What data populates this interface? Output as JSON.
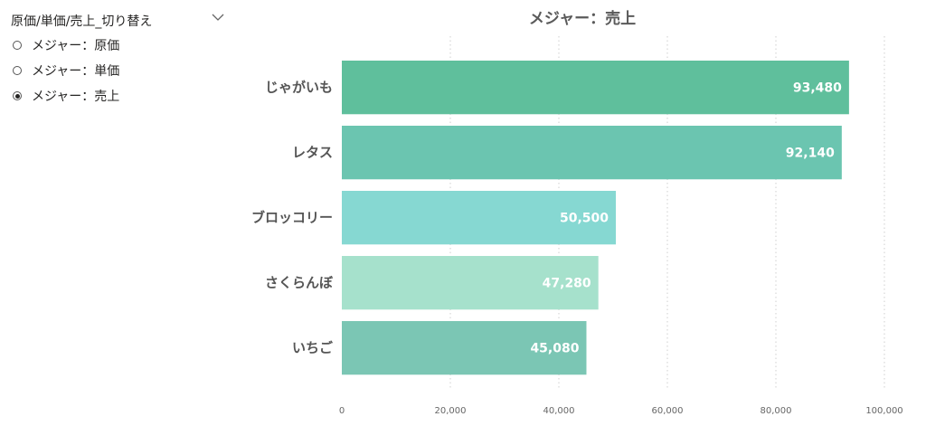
{
  "slicer": {
    "title": "原価/単価/売上_切り替え",
    "chevron_icon": "chevron-down-icon",
    "options": [
      {
        "label": "メジャー：原価",
        "selected": false
      },
      {
        "label": "メジャー：単価",
        "selected": false
      },
      {
        "label": "メジャー：売上",
        "selected": true
      }
    ]
  },
  "chart_data": {
    "type": "bar",
    "orientation": "horizontal",
    "title": "メジャー：売上",
    "categories": [
      "じゃがいも",
      "レタス",
      "ブロッコリー",
      "さくらんぼ",
      "いちご"
    ],
    "values": [
      93480,
      92140,
      50500,
      47280,
      45080
    ],
    "data_labels": [
      "93,480",
      "92,140",
      "50,500",
      "47,280",
      "45,080"
    ],
    "colors": [
      "#5fbf9c",
      "#6bc5b0",
      "#86d8d2",
      "#a6e1cc",
      "#7bc6b4"
    ],
    "xlim": [
      0,
      100000
    ],
    "x_ticks": [
      0,
      20000,
      40000,
      60000,
      80000,
      100000
    ],
    "x_tick_labels": [
      "0",
      "20,000",
      "40,000",
      "60,000",
      "80,000",
      "100,000"
    ],
    "xlabel": "",
    "ylabel": "",
    "grid": true,
    "legend": "none"
  }
}
